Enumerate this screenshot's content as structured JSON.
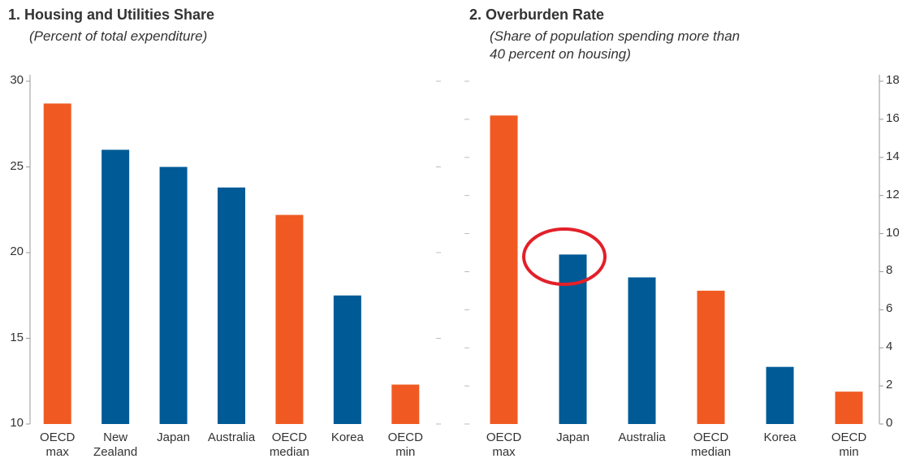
{
  "chart_data": [
    {
      "type": "bar",
      "title": "1. Housing and Utilities Share",
      "subtitle": "(Percent of total expenditure)",
      "categories": [
        "OECD\nmax",
        "New\nZealand",
        "Japan",
        "Australia",
        "OECD\nmedian",
        "Korea",
        "OECD\nmin"
      ],
      "values": [
        28.7,
        26.0,
        25.0,
        23.8,
        22.2,
        17.5,
        12.3
      ],
      "colors": [
        "#f05a22",
        "#005a96",
        "#005a96",
        "#005a96",
        "#f05a22",
        "#005a96",
        "#f05a22"
      ],
      "ylim": [
        10,
        30
      ],
      "yticks": [
        10,
        15,
        20,
        25,
        30
      ],
      "axis_side": "left"
    },
    {
      "type": "bar",
      "title": "2. Overburden Rate",
      "subtitle": "(Share of population spending more than\n40 percent on housing)",
      "categories": [
        "OECD\nmax",
        "Japan",
        "Australia",
        "OECD\nmedian",
        "Korea",
        "OECD\nmin"
      ],
      "values": [
        16.2,
        8.9,
        7.7,
        7.0,
        3.0,
        1.7
      ],
      "colors": [
        "#f05a22",
        "#005a96",
        "#005a96",
        "#f05a22",
        "#005a96",
        "#f05a22"
      ],
      "ylim": [
        0,
        18
      ],
      "yticks": [
        0,
        2,
        4,
        6,
        8,
        10,
        12,
        14,
        16,
        18
      ],
      "axis_side": "right"
    }
  ]
}
